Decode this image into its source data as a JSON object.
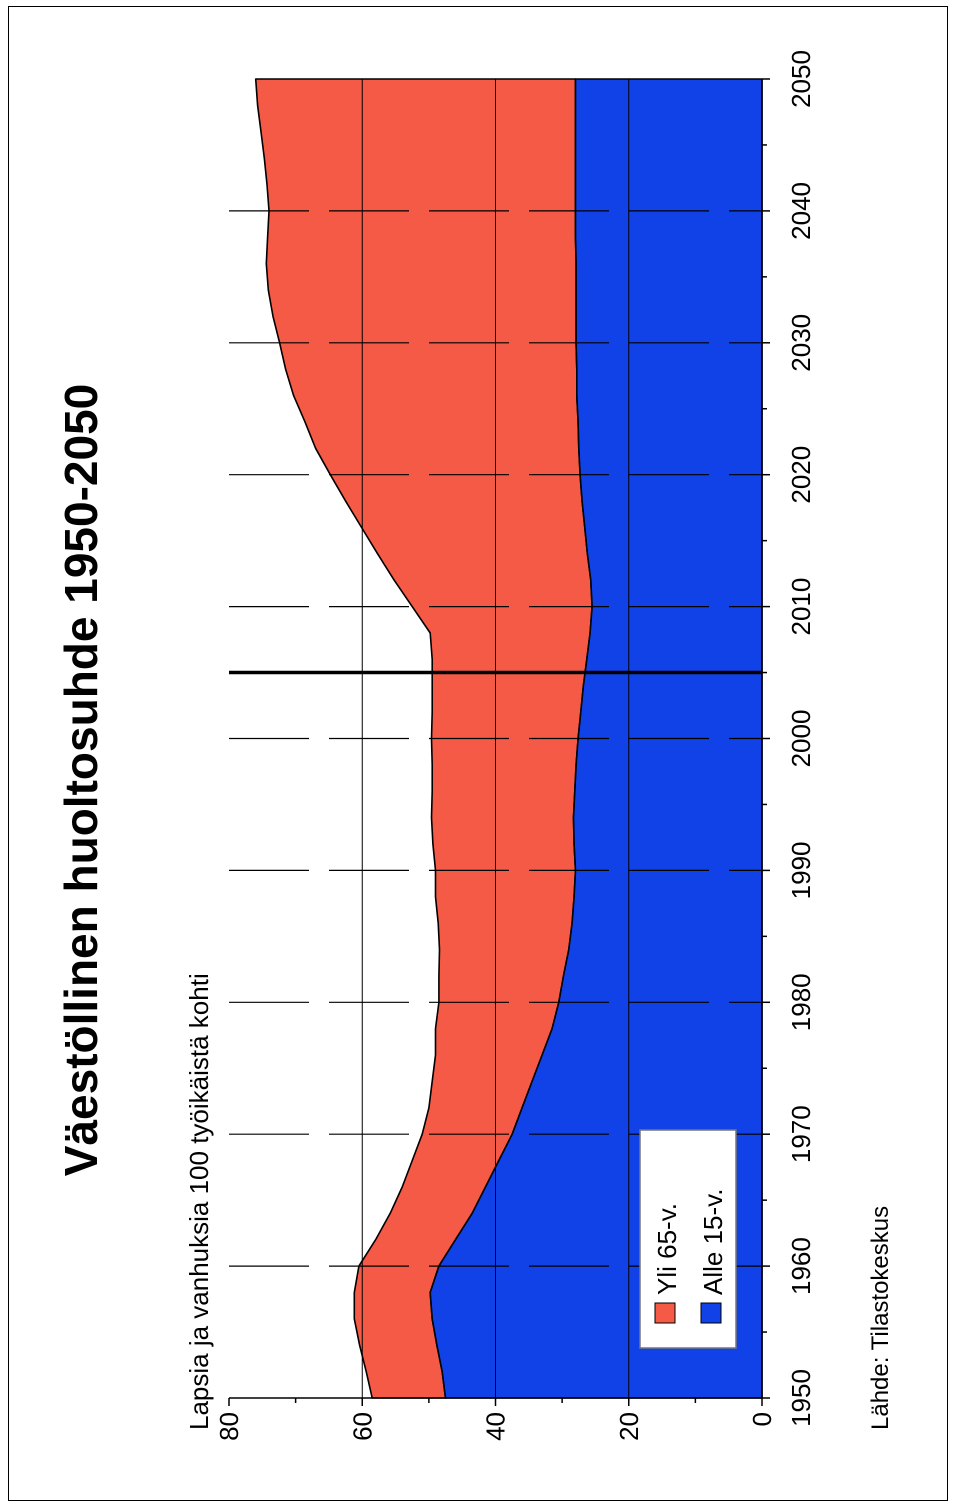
{
  "chart_data": {
    "type": "area",
    "stacked": true,
    "orientation": "rotated-90-ccw",
    "title": "Väestöllinen huoltosuhde 1950-2050",
    "ylabel": "Lapsia ja vanhuksia 100 työikäistä kohti",
    "source": "Lähde: Tilastokeskus",
    "xlim": [
      1950,
      2050
    ],
    "ylim": [
      0,
      80
    ],
    "x_ticks": [
      "1950",
      "1960",
      "1970",
      "1980",
      "1990",
      "2000",
      "2010",
      "2020",
      "2030",
      "2040",
      "2050"
    ],
    "y_ticks": [
      "0",
      "20",
      "40",
      "60",
      "80"
    ],
    "grid": true,
    "forecast_start": 2005,
    "legend_position": "bottom-left",
    "x": [
      1950,
      1952,
      1954,
      1956,
      1958,
      1960,
      1962,
      1964,
      1966,
      1968,
      1970,
      1972,
      1974,
      1976,
      1978,
      1980,
      1982,
      1984,
      1986,
      1988,
      1990,
      1992,
      1994,
      1996,
      1998,
      2000,
      2002,
      2004,
      2006,
      2008,
      2010,
      2012,
      2014,
      2016,
      2018,
      2020,
      2022,
      2024,
      2026,
      2028,
      2030,
      2032,
      2034,
      2036,
      2038,
      2040,
      2042,
      2044,
      2046,
      2048,
      2050
    ],
    "series": [
      {
        "name": "Alle 15-v.",
        "color": "#1042e8",
        "values": [
          47.5,
          48.0,
          48.8,
          49.5,
          49.8,
          48.5,
          46.0,
          43.5,
          41.5,
          39.5,
          37.5,
          36.0,
          34.5,
          33.0,
          31.5,
          30.5,
          29.8,
          29.0,
          28.5,
          28.2,
          28.0,
          28.2,
          28.3,
          28.1,
          27.9,
          27.6,
          27.2,
          26.8,
          26.3,
          25.8,
          25.5,
          25.7,
          26.2,
          26.6,
          27.0,
          27.3,
          27.5,
          27.6,
          27.8,
          27.8,
          27.9,
          27.9,
          27.9,
          27.9,
          28.0,
          28.0,
          28.0,
          28.0,
          28.0,
          28.0,
          28.0
        ]
      },
      {
        "name": "Yli 65-v.",
        "color": "#f45a46",
        "values": [
          11.0,
          11.4,
          11.6,
          11.7,
          11.4,
          12.0,
          12.0,
          12.3,
          12.5,
          13.0,
          13.5,
          14.0,
          15.0,
          16.0,
          17.5,
          18.0,
          18.7,
          19.4,
          20.1,
          20.8,
          21.0,
          21.2,
          21.3,
          21.4,
          21.6,
          22.0,
          22.3,
          22.7,
          23.2,
          24.0,
          27.0,
          29.5,
          31.5,
          33.5,
          35.5,
          37.5,
          39.5,
          41.0,
          42.5,
          43.7,
          44.5,
          45.5,
          46.2,
          46.5,
          46.2,
          46.0,
          46.3,
          46.7,
          47.2,
          47.7,
          48.0
        ]
      }
    ]
  }
}
